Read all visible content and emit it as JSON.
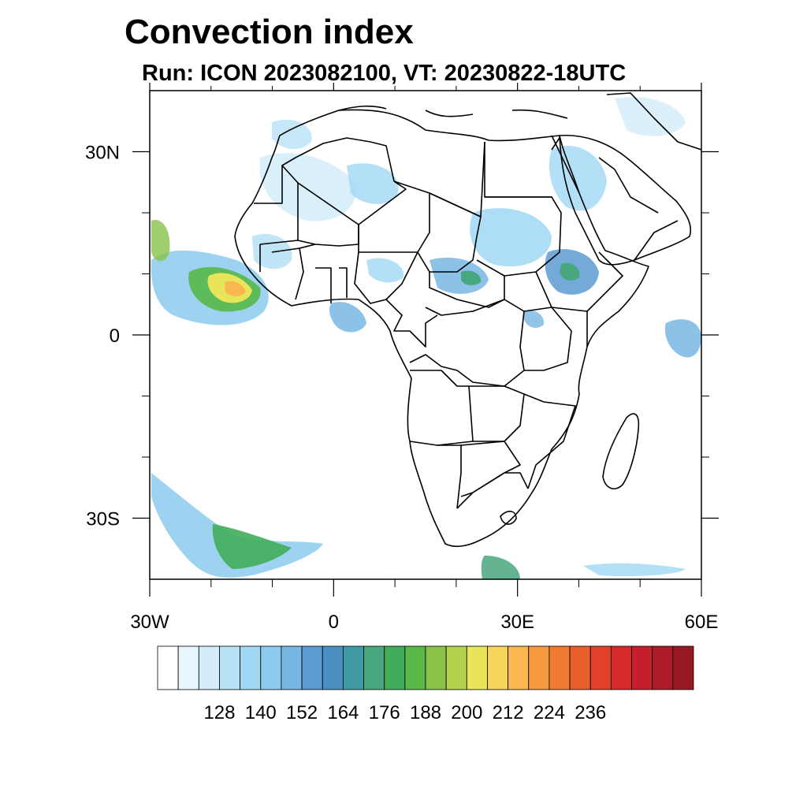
{
  "title": "Convection index",
  "subtitle": "Run: ICON 2023082100,  VT: 20230822-18UTC",
  "map": {
    "lon_range": [
      -30,
      60
    ],
    "lat_range": [
      -40,
      40
    ],
    "x_ticks": [
      {
        "lon": -30,
        "label": "30W"
      },
      {
        "lon": 0,
        "label": "0"
      },
      {
        "lon": 30,
        "label": "30E"
      },
      {
        "lon": 60,
        "label": "60E"
      }
    ],
    "y_ticks": [
      {
        "lat": 30,
        "label": "30N"
      },
      {
        "lat": 0,
        "label": "0"
      },
      {
        "lat": -30,
        "label": "30S"
      }
    ],
    "minor_lon": [
      -20,
      -10,
      10,
      20,
      40,
      50
    ],
    "minor_lat": [
      20,
      10,
      -10,
      -20
    ]
  },
  "colorbar": {
    "labels": [
      "128",
      "140",
      "152",
      "164",
      "176",
      "188",
      "200",
      "212",
      "224",
      "236"
    ],
    "colors": [
      "#ffffff",
      "#e8f5fc",
      "#d2ecf9",
      "#b9e2f6",
      "#a0d8f4",
      "#8ccaef",
      "#78b6e4",
      "#5b9bd1",
      "#4a8fc2",
      "#3f9aa5",
      "#49a77f",
      "#41ad5a",
      "#58b848",
      "#8bc34a",
      "#b4d34c",
      "#e8e55a",
      "#f9d45b",
      "#f8b84f",
      "#f59a3f",
      "#f07c32",
      "#e95e2d",
      "#e04128",
      "#d42a2a",
      "#c41f2b",
      "#ae1b28",
      "#971a22"
    ]
  }
}
